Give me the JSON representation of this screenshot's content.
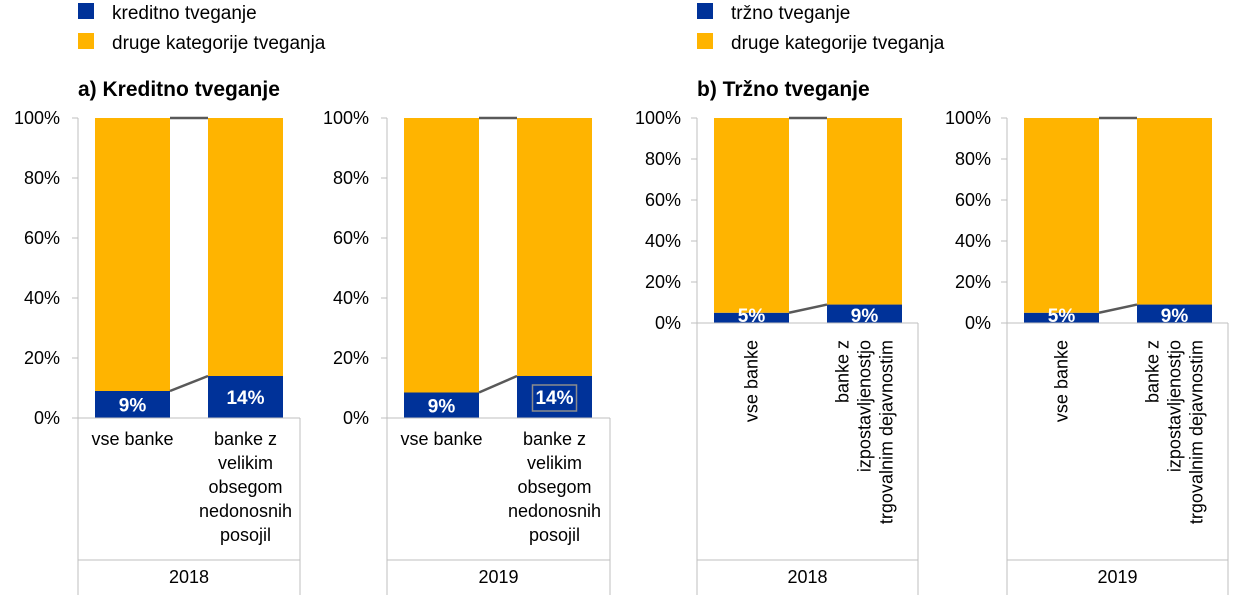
{
  "colors": {
    "primary": "#003299",
    "secondary": "#ffb400"
  },
  "panels": [
    {
      "id": "a",
      "title": "a) Kreditno tveganje",
      "legend": [
        {
          "label": "kreditno tveganje",
          "color": "#003299"
        },
        {
          "label": "druge kategorije tveganja",
          "color": "#ffb400"
        }
      ]
    },
    {
      "id": "b",
      "title": "b) Tržno tveganje",
      "legend": [
        {
          "label": "tržno tveganje",
          "color": "#003299"
        },
        {
          "label": "druge kategorije tveganja",
          "color": "#ffb400"
        }
      ]
    }
  ],
  "chart_data": [
    {
      "type": "bar",
      "stacked": true,
      "percent": true,
      "group": "2018",
      "panel": "a",
      "categories": [
        "vse banke",
        "banke z velikim obsegom nedonosnih posojil"
      ],
      "category_lines": [
        [
          "vse banke"
        ],
        [
          "banke z",
          "velikim",
          "obsegom",
          "nedonosnih",
          "posojil"
        ]
      ],
      "series": [
        {
          "name": "kreditno tveganje",
          "values": [
            9,
            14
          ]
        },
        {
          "name": "druge kategorije tveganja",
          "values": [
            91,
            86
          ]
        }
      ],
      "data_labels": [
        "9%",
        "14%"
      ],
      "y_ticks": [
        "0%",
        "20%",
        "40%",
        "60%",
        "80%",
        "100%"
      ],
      "ylim": [
        0,
        100
      ]
    },
    {
      "type": "bar",
      "stacked": true,
      "percent": true,
      "group": "2019",
      "panel": "a",
      "categories": [
        "vse banke",
        "banke z velikim obsegom nedonosnih posojil"
      ],
      "category_lines": [
        [
          "vse banke"
        ],
        [
          "banke z",
          "velikim",
          "obsegom",
          "nedonosnih",
          "posojil"
        ]
      ],
      "series": [
        {
          "name": "kreditno tveganje",
          "values": [
            8.5,
            14
          ]
        },
        {
          "name": "druge kategorije tveganja",
          "values": [
            91.5,
            86
          ]
        }
      ],
      "data_labels": [
        "9%",
        "14%"
      ],
      "y_ticks": [
        "0%",
        "20%",
        "40%",
        "60%",
        "80%",
        "100%"
      ],
      "ylim": [
        0,
        100
      ]
    },
    {
      "type": "bar",
      "stacked": true,
      "percent": true,
      "group": "2018",
      "panel": "b",
      "categories": [
        "vse banke",
        "banke z izpostavljenostjo trgovalnim dejavnostim"
      ],
      "category_lines": [
        [
          "vse banke"
        ],
        [
          "banke z",
          "izpostavljenostjo",
          "trgovalnim dejavnostim"
        ]
      ],
      "series": [
        {
          "name": "tržno tveganje",
          "values": [
            5,
            9
          ]
        },
        {
          "name": "druge kategorije tveganja",
          "values": [
            95,
            91
          ]
        }
      ],
      "data_labels": [
        "5%",
        "9%"
      ],
      "y_ticks": [
        "0%",
        "20%",
        "40%",
        "60%",
        "80%",
        "100%"
      ],
      "ylim": [
        0,
        100
      ]
    },
    {
      "type": "bar",
      "stacked": true,
      "percent": true,
      "group": "2019",
      "panel": "b",
      "categories": [
        "vse banke",
        "banke z izpostavljenostjo trgovalnim dejavnostim"
      ],
      "category_lines": [
        [
          "vse banke"
        ],
        [
          "banke z",
          "izpostavljenostjo",
          "trgovalnim dejavnostim"
        ]
      ],
      "series": [
        {
          "name": "tržno tveganje",
          "values": [
            5,
            9
          ]
        },
        {
          "name": "druge kategorije tveganja",
          "values": [
            95,
            91
          ]
        }
      ],
      "data_labels": [
        "5%",
        "9%"
      ],
      "y_ticks": [
        "0%",
        "20%",
        "40%",
        "60%",
        "80%",
        "100%"
      ],
      "ylim": [
        0,
        100
      ]
    }
  ]
}
